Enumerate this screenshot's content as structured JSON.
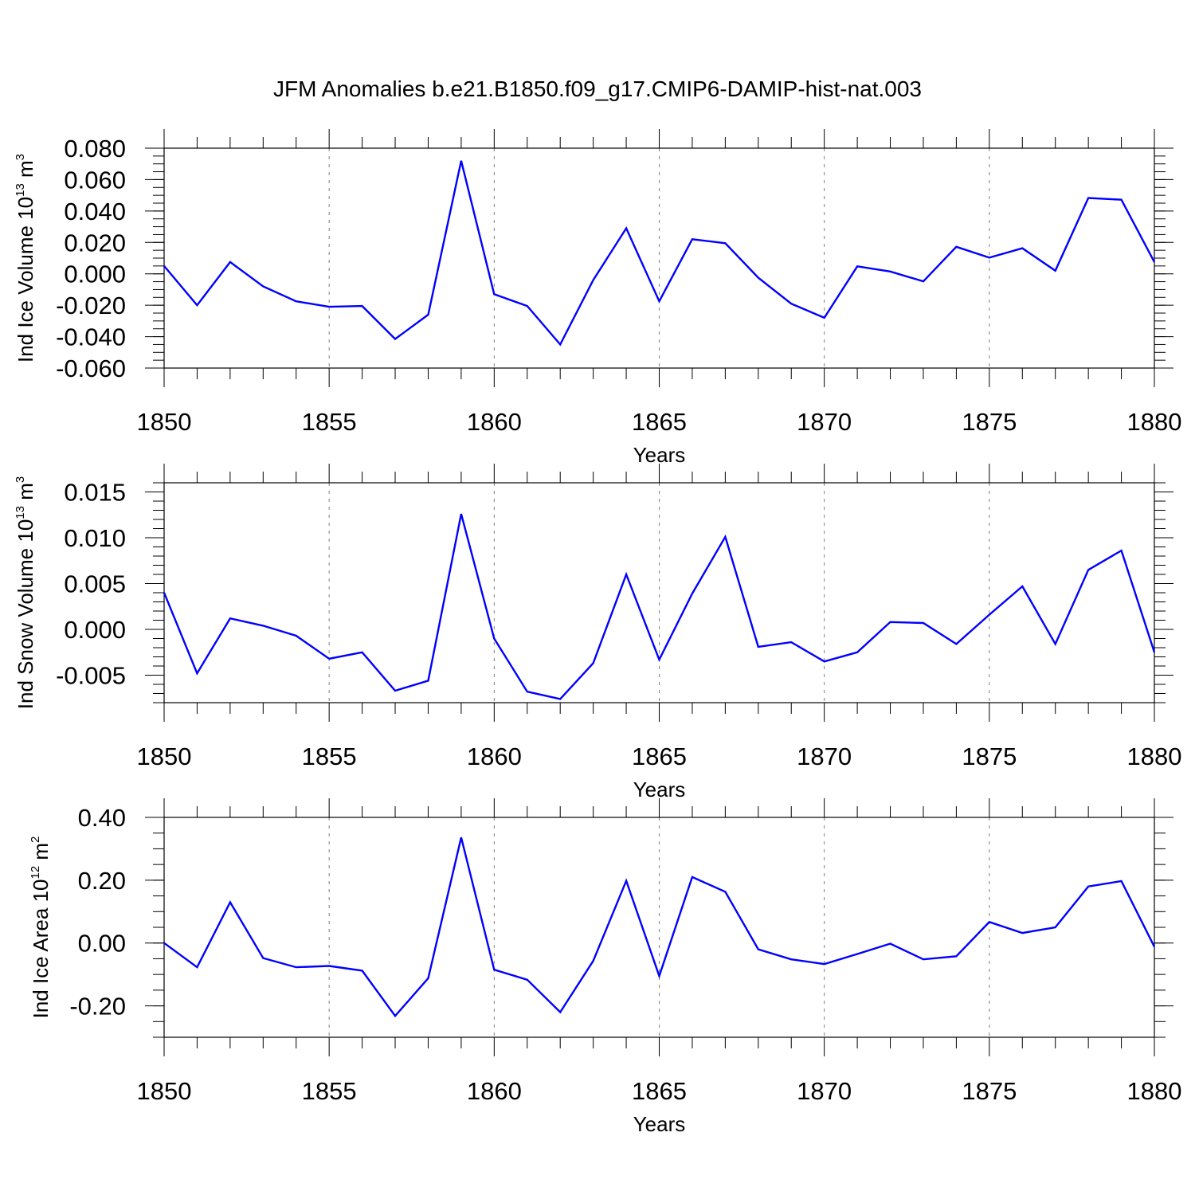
{
  "title": "JFM Anomalies b.e21.B1850.f09_g17.CMIP6-DAMIP-hist-nat.003",
  "colors": {
    "line": "#0000ff",
    "axis": "#000000",
    "grid": "#808080"
  },
  "chart_data": [
    {
      "type": "line",
      "xlabel": "Years",
      "ylabel": {
        "main": "Ind Ice Volume 10",
        "exp": "13",
        "unit": " m",
        "unit_exp": "3"
      },
      "xlim": [
        1850,
        1880
      ],
      "ylim": [
        -0.06,
        0.08
      ],
      "xticks": [
        1850,
        1855,
        1860,
        1865,
        1870,
        1875,
        1880
      ],
      "xtick_labels": [
        "1850",
        "1855",
        "1860",
        "1865",
        "1870",
        "1875",
        "1880"
      ],
      "yticks": [
        -0.06,
        -0.04,
        -0.02,
        0.0,
        0.02,
        0.04,
        0.06,
        0.08
      ],
      "ytick_labels": [
        "-0.060",
        "-0.040",
        "-0.020",
        "0.000",
        "0.020",
        "0.040",
        "0.060",
        "0.080"
      ],
      "minor_y_step": 0.005,
      "grid": "vertical dashed at major x ticks",
      "series": [
        {
          "x": [
            1850,
            1851,
            1852,
            1853,
            1854,
            1855,
            1856,
            1857,
            1858,
            1859,
            1860,
            1861,
            1862,
            1863,
            1864,
            1865,
            1866,
            1867,
            1868,
            1869,
            1870,
            1871,
            1872,
            1873,
            1874,
            1875,
            1876,
            1877,
            1878,
            1879,
            1880
          ],
          "values": [
            0.005,
            -0.02,
            0.0075,
            -0.008,
            -0.0175,
            -0.021,
            -0.0205,
            -0.0415,
            -0.026,
            0.072,
            -0.013,
            -0.0205,
            -0.045,
            -0.004,
            0.029,
            -0.0175,
            0.022,
            0.0195,
            -0.0025,
            -0.019,
            -0.028,
            0.0048,
            0.0015,
            -0.0048,
            0.0172,
            0.0103,
            0.0163,
            0.002,
            0.0483,
            0.0472,
            0.0075
          ]
        }
      ]
    },
    {
      "type": "line",
      "xlabel": "Years",
      "ylabel": {
        "main": "Ind Snow Volume 10",
        "exp": "13",
        "unit": " m",
        "unit_exp": "3"
      },
      "xlim": [
        1850,
        1880
      ],
      "ylim": [
        -0.008,
        0.016
      ],
      "xticks": [
        1850,
        1855,
        1860,
        1865,
        1870,
        1875,
        1880
      ],
      "xtick_labels": [
        "1850",
        "1855",
        "1860",
        "1865",
        "1870",
        "1875",
        "1880"
      ],
      "yticks": [
        -0.005,
        0.0,
        0.005,
        0.01,
        0.015
      ],
      "ytick_labels": [
        "-0.005",
        "0.000",
        "0.005",
        "0.010",
        "0.015"
      ],
      "minor_y_step": 0.001,
      "grid": "vertical dashed at major x ticks",
      "series": [
        {
          "x": [
            1850,
            1851,
            1852,
            1853,
            1854,
            1855,
            1856,
            1857,
            1858,
            1859,
            1860,
            1861,
            1862,
            1863,
            1864,
            1865,
            1866,
            1867,
            1868,
            1869,
            1870,
            1871,
            1872,
            1873,
            1874,
            1875,
            1876,
            1877,
            1878,
            1879,
            1880
          ],
          "values": [
            0.004,
            -0.0048,
            0.0012,
            0.0004,
            -0.0007,
            -0.0032,
            -0.0025,
            -0.0067,
            -0.0056,
            0.0126,
            -0.001,
            -0.0068,
            -0.0076,
            -0.0037,
            0.006,
            -0.0033,
            0.0039,
            0.0101,
            -0.0019,
            -0.0014,
            -0.0035,
            -0.0025,
            0.0008,
            0.0007,
            -0.0016,
            0.0016,
            0.0047,
            -0.0016,
            0.0065,
            0.0086,
            -0.0025
          ]
        }
      ]
    },
    {
      "type": "line",
      "xlabel": "Years",
      "ylabel": {
        "main": "Ind Ice Area 10",
        "exp": "12",
        "unit": " m",
        "unit_exp": "2"
      },
      "xlim": [
        1850,
        1880
      ],
      "ylim": [
        -0.3,
        0.4
      ],
      "xticks": [
        1850,
        1855,
        1860,
        1865,
        1870,
        1875,
        1880
      ],
      "xtick_labels": [
        "1850",
        "1855",
        "1860",
        "1865",
        "1870",
        "1875",
        "1880"
      ],
      "yticks": [
        -0.2,
        0.0,
        0.2,
        0.4
      ],
      "ytick_labels": [
        "-0.20",
        "0.00",
        "0.20",
        "0.40"
      ],
      "minor_y_step": 0.05,
      "grid": "vertical dashed at major x ticks",
      "series": [
        {
          "x": [
            1850,
            1851,
            1852,
            1853,
            1854,
            1855,
            1856,
            1857,
            1858,
            1859,
            1860,
            1861,
            1862,
            1863,
            1864,
            1865,
            1866,
            1867,
            1868,
            1869,
            1870,
            1871,
            1872,
            1873,
            1874,
            1875,
            1876,
            1877,
            1878,
            1879,
            1880
          ],
          "values": [
            0.0,
            -0.077,
            0.13,
            -0.048,
            -0.077,
            -0.073,
            -0.088,
            -0.232,
            -0.112,
            0.336,
            -0.085,
            -0.117,
            -0.22,
            -0.057,
            0.198,
            -0.105,
            0.21,
            0.163,
            -0.02,
            -0.052,
            -0.067,
            -0.035,
            -0.002,
            -0.052,
            -0.042,
            0.067,
            0.032,
            0.05,
            0.18,
            0.197,
            -0.012
          ]
        }
      ]
    }
  ]
}
